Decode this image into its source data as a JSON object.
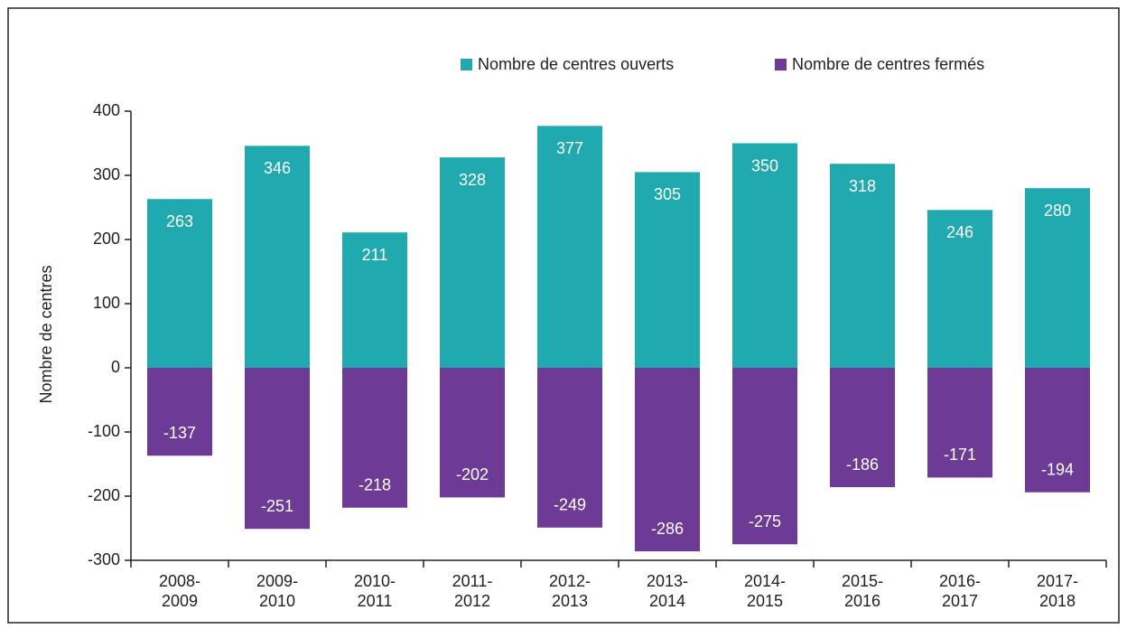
{
  "chart_data": {
    "type": "bar",
    "y_label": "Nombre de centres",
    "categories": [
      "2008-2009",
      "2009-2010",
      "2010-2011",
      "2011-2012",
      "2012-2013",
      "2013-2014",
      "2014-2015",
      "2015-2016",
      "2016-2017",
      "2017-2018"
    ],
    "series": [
      {
        "name": "Nombre de centres ouverts",
        "color": "#21a9b0",
        "values": [
          263,
          346,
          211,
          328,
          377,
          305,
          350,
          318,
          246,
          280
        ]
      },
      {
        "name": "Nombre de centres fermés",
        "color": "#6d3a95",
        "values": [
          -137,
          -251,
          -218,
          -202,
          -249,
          -286,
          -275,
          -186,
          -171,
          -194
        ]
      }
    ],
    "ylim": [
      -300,
      400
    ],
    "yticks": [
      -300,
      -200,
      -100,
      0,
      100,
      200,
      300,
      400
    ],
    "grid": false,
    "legend": "top"
  }
}
